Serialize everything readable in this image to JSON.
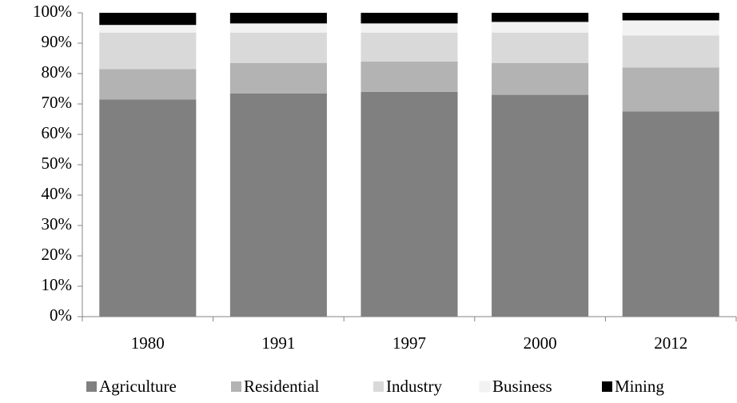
{
  "chart_data": {
    "type": "stacked_bar_100",
    "categories": [
      "1980",
      "1991",
      "1997",
      "2000",
      "2012"
    ],
    "series": [
      {
        "name": "Agriculture",
        "color": "#808080",
        "values": [
          71.5,
          73.5,
          74,
          73,
          67.5
        ]
      },
      {
        "name": "Residential",
        "color": "#b3b3b3",
        "values": [
          10,
          10,
          10,
          10.5,
          14.5
        ]
      },
      {
        "name": "Industry",
        "color": "#d9d9d9",
        "values": [
          12,
          10,
          9.5,
          10,
          10.5
        ]
      },
      {
        "name": "Business",
        "color": "#f2f2f2",
        "values": [
          2.5,
          3,
          3,
          3.5,
          5
        ]
      },
      {
        "name": "Mining",
        "color": "#000000",
        "values": [
          4,
          3.5,
          3.5,
          3,
          2.5
        ]
      }
    ],
    "ylim": [
      0,
      100
    ],
    "yticks": [
      {
        "value": 0,
        "label": "0%"
      },
      {
        "value": 10,
        "label": "10%"
      },
      {
        "value": 20,
        "label": "20%"
      },
      {
        "value": 30,
        "label": "30%"
      },
      {
        "value": 40,
        "label": "40%"
      },
      {
        "value": 50,
        "label": "50%"
      },
      {
        "value": 60,
        "label": "60%"
      },
      {
        "value": 70,
        "label": "70%"
      },
      {
        "value": 80,
        "label": "80%"
      },
      {
        "value": 90,
        "label": "90%"
      },
      {
        "value": 100,
        "label": "100%"
      }
    ],
    "grid": false,
    "legend": "bottom"
  }
}
